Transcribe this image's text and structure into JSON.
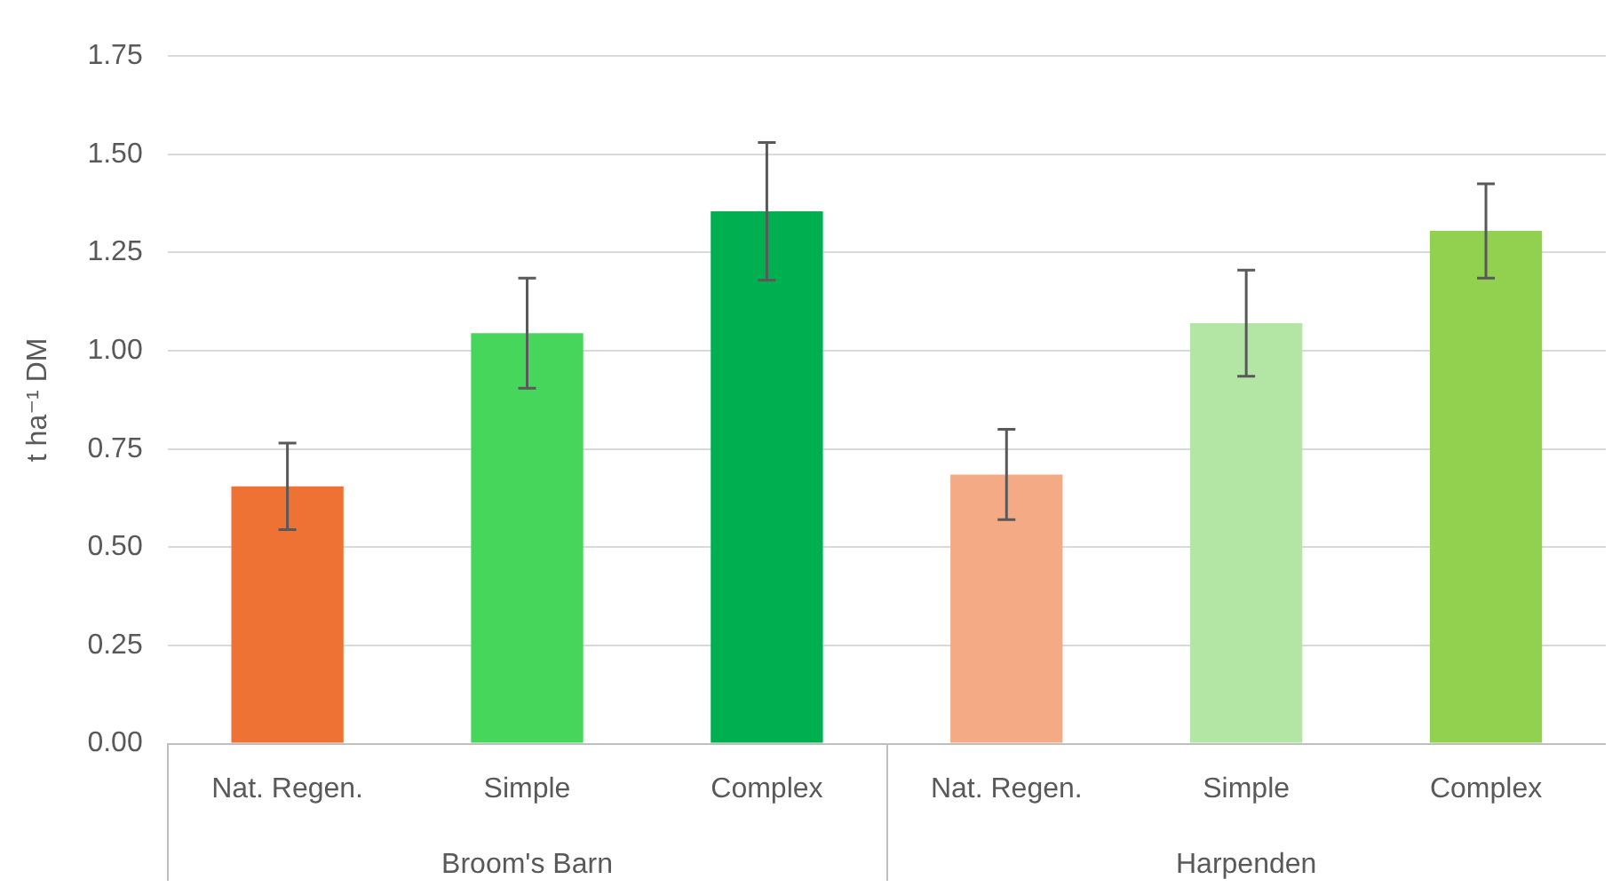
{
  "chart_data": {
    "type": "bar",
    "ylabel": "t ha⁻¹ DM",
    "categories": [
      "Nat. Regen.",
      "Simple",
      "Complex",
      "Nat. Regen.",
      "Simple",
      "Complex"
    ],
    "values": [
      0.655,
      1.045,
      1.355,
      0.685,
      1.07,
      1.305
    ],
    "errors": [
      0.11,
      0.14,
      0.175,
      0.115,
      0.135,
      0.12
    ],
    "colors": [
      "#ed7233",
      "#47d65c",
      "#00b050",
      "#f4aa84",
      "#b3e6a4",
      "#92d050"
    ],
    "ylim": [
      0,
      1.75
    ],
    "yticks": [
      {
        "value": 0,
        "label": "0.00"
      },
      {
        "value": 0.25,
        "label": "0.25"
      },
      {
        "value": 0.5,
        "label": "0.50"
      },
      {
        "value": 0.75,
        "label": "0.75"
      },
      {
        "value": 1,
        "label": "1.00"
      },
      {
        "value": 1.25,
        "label": "1.25"
      },
      {
        "value": 1.5,
        "label": "1.50"
      },
      {
        "value": 1.75,
        "label": "1.75"
      }
    ],
    "annotations": [
      "Broom's Barn",
      "Harpenden"
    ],
    "grid": "y",
    "legend": false
  }
}
